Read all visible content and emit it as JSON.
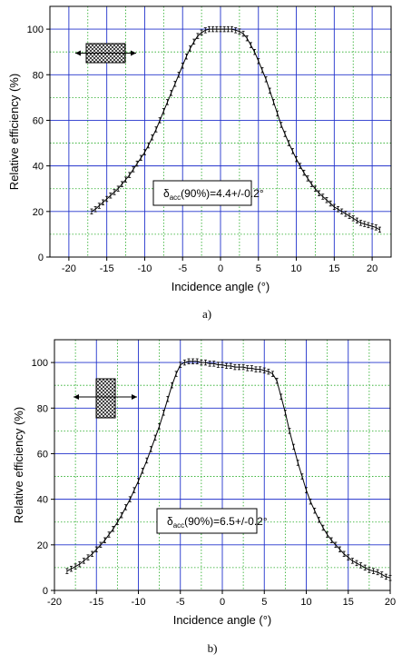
{
  "figure": {
    "panel_labels": [
      "a)",
      "b)"
    ]
  },
  "chart_data": [
    {
      "type": "line",
      "xlabel": "Incidence angle (°)",
      "ylabel": "Relative efficiency (%)",
      "xlim": [
        -22.5,
        22.5
      ],
      "ylim": [
        0,
        110
      ],
      "xticks": [
        -20,
        -15,
        -10,
        -5,
        0,
        5,
        10,
        15,
        20
      ],
      "yticks": [
        0,
        20,
        40,
        60,
        80,
        100
      ],
      "grid": {
        "major": "blue solid",
        "minor": "green dotted"
      },
      "error_bars": true,
      "annotation": {
        "prefix": "δ",
        "subscript": "acc",
        "suffix": "(90%)=4.4+/-0.2°"
      },
      "inset_orientation": "horizontal",
      "x": [
        -17,
        -16.5,
        -16,
        -15.5,
        -15,
        -14.5,
        -14,
        -13.5,
        -13,
        -12.5,
        -12,
        -11.5,
        -11,
        -10.5,
        -10,
        -9.5,
        -9,
        -8.5,
        -8,
        -7.5,
        -7,
        -6.5,
        -6,
        -5.5,
        -5,
        -4.5,
        -4,
        -3.5,
        -3,
        -2.5,
        -2,
        -1.5,
        -1,
        -0.5,
        0,
        0.5,
        1,
        1.5,
        2,
        2.5,
        3,
        3.5,
        4,
        4.5,
        5,
        5.5,
        6,
        6.5,
        7,
        7.5,
        8,
        8.5,
        9,
        9.5,
        10,
        10.5,
        11,
        11.5,
        12,
        12.5,
        13,
        13.5,
        14,
        14.5,
        15,
        15.5,
        16,
        16.5,
        17,
        17.5,
        18,
        18.5,
        19,
        19.5,
        20,
        20.5,
        21
      ],
      "series": [
        {
          "values": [
            20,
            21,
            22.5,
            24,
            25.5,
            27,
            28.5,
            30,
            32,
            34,
            36,
            38.5,
            41,
            43.5,
            46,
            49,
            52.5,
            56,
            60,
            64,
            68,
            72,
            76,
            80,
            84,
            88,
            91.5,
            94.5,
            97,
            98.5,
            99.5,
            100,
            100,
            100,
            100,
            100,
            100,
            100,
            99.5,
            99,
            98,
            96,
            93,
            90,
            86,
            82,
            78,
            73,
            68,
            63,
            58,
            54,
            50,
            46.5,
            43,
            40,
            37,
            34.5,
            32,
            30,
            28,
            26.5,
            25,
            23.5,
            22,
            21,
            20,
            19,
            18,
            17,
            16,
            15,
            14.5,
            14,
            13.5,
            13,
            12
          ]
        }
      ]
    },
    {
      "type": "line",
      "xlabel": "Incidence angle (°)",
      "ylabel": "Relative efficiency (%)",
      "xlim": [
        -20,
        20
      ],
      "ylim": [
        0,
        110
      ],
      "xticks": [
        -20,
        -15,
        -10,
        -5,
        0,
        5,
        10,
        15,
        20
      ],
      "yticks": [
        0,
        20,
        40,
        60,
        80,
        100
      ],
      "grid": {
        "major": "blue solid",
        "minor": "green dotted"
      },
      "error_bars": true,
      "annotation": {
        "prefix": "δ",
        "subscript": "acc",
        "suffix": "(90%)=6.5+/-0.2°"
      },
      "inset_orientation": "vertical",
      "x": [
        -18.5,
        -18,
        -17.5,
        -17,
        -16.5,
        -16,
        -15.5,
        -15,
        -14.5,
        -14,
        -13.5,
        -13,
        -12.5,
        -12,
        -11.5,
        -11,
        -10.5,
        -10,
        -9.5,
        -9,
        -8.5,
        -8,
        -7.5,
        -7,
        -6.5,
        -6,
        -5.5,
        -5,
        -4.5,
        -4,
        -3.5,
        -3,
        -2.5,
        -2,
        -1.5,
        -1,
        -0.5,
        0,
        0.5,
        1,
        1.5,
        2,
        2.5,
        3,
        3.5,
        4,
        4.5,
        5,
        5.5,
        6,
        6.5,
        7,
        7.5,
        8,
        8.5,
        9,
        9.5,
        10,
        10.5,
        11,
        11.5,
        12,
        12.5,
        13,
        13.5,
        14,
        14.5,
        15,
        15.5,
        16,
        16.5,
        17,
        17.5,
        18,
        18.5,
        19,
        19.5,
        20
      ],
      "series": [
        {
          "values": [
            8.5,
            9.5,
            10.5,
            11.5,
            13,
            14.5,
            16,
            18,
            20,
            22,
            24.5,
            27,
            30,
            33,
            36.5,
            40,
            44,
            48,
            52.5,
            57,
            62,
            67,
            72,
            78,
            84,
            90,
            95,
            99,
            100,
            100.5,
            100.5,
            100.5,
            100,
            100,
            99.5,
            99.5,
            99,
            99,
            98.5,
            98.5,
            98,
            98,
            98,
            97.5,
            97.5,
            97,
            97,
            96.5,
            96,
            95,
            92,
            85,
            78,
            70,
            63,
            56,
            50,
            44,
            39,
            35,
            31,
            27.5,
            24.5,
            22,
            20,
            18,
            16,
            14.5,
            13,
            12,
            11,
            10,
            9,
            8.5,
            8,
            7,
            6,
            5.5
          ]
        }
      ]
    }
  ]
}
